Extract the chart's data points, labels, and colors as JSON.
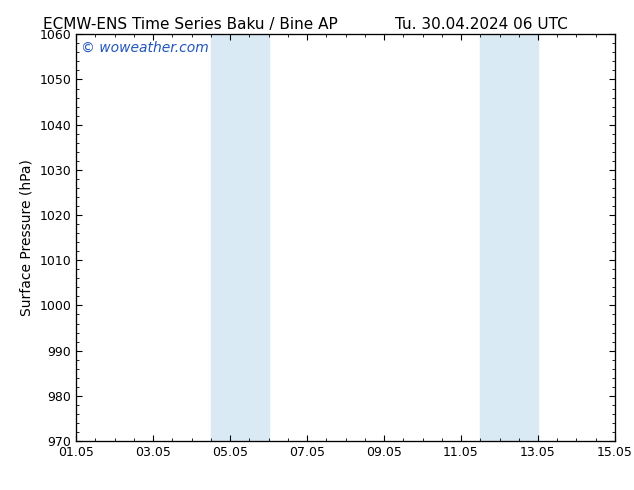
{
  "title_left": "ECMW-ENS Time Series Baku / Bine AP",
  "title_right": "Tu. 30.04.2024 06 UTC",
  "ylabel": "Surface Pressure (hPa)",
  "ylim": [
    970,
    1060
  ],
  "yticks_major": [
    970,
    980,
    990,
    1000,
    1010,
    1020,
    1030,
    1040,
    1050,
    1060
  ],
  "xlim_start": 0,
  "xlim_end": 14,
  "xtick_labels": [
    "01.05",
    "03.05",
    "05.05",
    "07.05",
    "09.05",
    "11.05",
    "13.05",
    "15.05"
  ],
  "xtick_positions": [
    0,
    2,
    4,
    6,
    8,
    10,
    12,
    14
  ],
  "shaded_bands": [
    {
      "x_start": 3.5,
      "x_end": 5.0
    },
    {
      "x_start": 10.5,
      "x_end": 12.0
    }
  ],
  "shaded_color": "#daeaf5",
  "background_color": "#ffffff",
  "plot_bg_color": "#ffffff",
  "watermark_text": "© woweather.com",
  "watermark_color": "#2255bb",
  "title_fontsize": 11,
  "label_fontsize": 10,
  "tick_fontsize": 9,
  "watermark_fontsize": 10,
  "grid_color": "#dddddd",
  "border_color": "#000000",
  "tick_color": "#000000"
}
